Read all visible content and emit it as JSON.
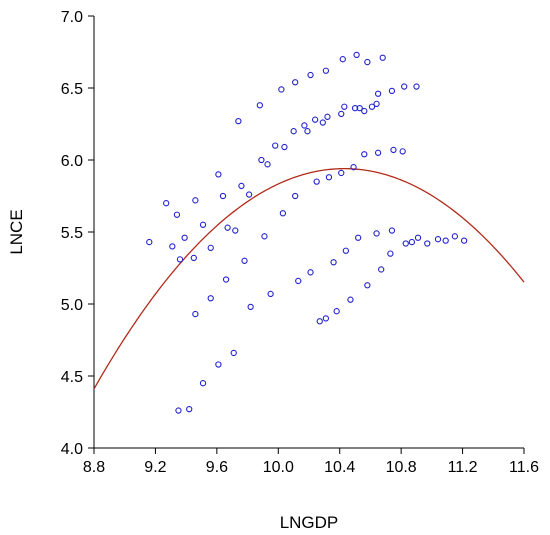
{
  "chart_data": {
    "type": "scatter",
    "xlabel": "LNGDP",
    "ylabel": "LNCE",
    "xlim": [
      8.8,
      11.6
    ],
    "ylim": [
      4.0,
      7.0
    ],
    "x_ticks": [
      "8.8",
      "9.2",
      "9.6",
      "10.0",
      "10.4",
      "10.8",
      "11.2",
      "11.6"
    ],
    "y_ticks": [
      "4.0",
      "4.5",
      "5.0",
      "5.5",
      "6.0",
      "6.5",
      "7.0"
    ],
    "grid": false,
    "marker_color": "#2222cc",
    "curve_color": "#b22a1a",
    "series": [
      {
        "kind": "points",
        "points": [
          [
            9.16,
            5.43
          ],
          [
            9.27,
            5.7
          ],
          [
            9.31,
            5.4
          ],
          [
            9.34,
            5.62
          ],
          [
            9.36,
            5.31
          ],
          [
            9.39,
            5.46
          ],
          [
            9.45,
            5.32
          ],
          [
            9.46,
            5.72
          ],
          [
            9.51,
            5.55
          ],
          [
            9.56,
            5.39
          ],
          [
            9.61,
            5.9
          ],
          [
            9.64,
            5.75
          ],
          [
            9.67,
            5.53
          ],
          [
            9.74,
            6.27
          ],
          [
            9.76,
            5.82
          ],
          [
            9.81,
            5.76
          ],
          [
            9.88,
            6.38
          ],
          [
            9.89,
            6.0
          ],
          [
            9.93,
            5.97
          ],
          [
            9.98,
            6.1
          ],
          [
            10.02,
            6.49
          ],
          [
            10.04,
            6.09
          ],
          [
            10.1,
            6.2
          ],
          [
            10.11,
            6.54
          ],
          [
            10.17,
            6.24
          ],
          [
            10.19,
            6.2
          ],
          [
            10.21,
            6.59
          ],
          [
            10.24,
            6.28
          ],
          [
            10.29,
            6.26
          ],
          [
            10.31,
            6.62
          ],
          [
            10.32,
            6.3
          ],
          [
            10.41,
            6.32
          ],
          [
            10.42,
            6.7
          ],
          [
            10.43,
            6.37
          ],
          [
            10.5,
            6.36
          ],
          [
            10.51,
            6.73
          ],
          [
            10.53,
            6.36
          ],
          [
            10.56,
            6.34
          ],
          [
            10.58,
            6.68
          ],
          [
            10.61,
            6.37
          ],
          [
            10.64,
            6.39
          ],
          [
            10.65,
            6.46
          ],
          [
            10.68,
            6.71
          ],
          [
            10.74,
            6.48
          ],
          [
            10.82,
            6.51
          ],
          [
            10.9,
            6.51
          ],
          [
            9.72,
            5.51
          ],
          [
            9.78,
            5.3
          ],
          [
            9.82,
            4.98
          ],
          [
            9.91,
            5.47
          ],
          [
            9.95,
            5.07
          ],
          [
            10.03,
            5.63
          ],
          [
            10.11,
            5.75
          ],
          [
            10.13,
            5.16
          ],
          [
            10.21,
            5.22
          ],
          [
            10.25,
            5.85
          ],
          [
            10.27,
            4.88
          ],
          [
            10.31,
            4.9
          ],
          [
            10.33,
            5.88
          ],
          [
            10.36,
            5.29
          ],
          [
            10.38,
            4.95
          ],
          [
            10.41,
            5.91
          ],
          [
            10.44,
            5.37
          ],
          [
            10.47,
            5.03
          ],
          [
            10.49,
            5.95
          ],
          [
            10.52,
            5.46
          ],
          [
            10.56,
            6.04
          ],
          [
            10.58,
            5.13
          ],
          [
            10.64,
            5.49
          ],
          [
            10.65,
            6.05
          ],
          [
            10.67,
            5.24
          ],
          [
            10.73,
            5.35
          ],
          [
            10.74,
            5.51
          ],
          [
            10.75,
            6.07
          ],
          [
            10.81,
            6.06
          ],
          [
            10.83,
            5.42
          ],
          [
            10.87,
            5.43
          ],
          [
            10.91,
            5.46
          ],
          [
            10.97,
            5.42
          ],
          [
            11.04,
            5.45
          ],
          [
            11.09,
            5.44
          ],
          [
            11.15,
            5.47
          ],
          [
            11.21,
            5.44
          ],
          [
            9.35,
            4.26
          ],
          [
            9.42,
            4.27
          ],
          [
            9.46,
            4.93
          ],
          [
            9.51,
            4.45
          ],
          [
            9.56,
            5.04
          ],
          [
            9.61,
            4.58
          ],
          [
            9.66,
            5.17
          ],
          [
            9.71,
            4.66
          ]
        ]
      },
      {
        "kind": "curve",
        "vertex_x": 10.43,
        "vertex_y": 5.94,
        "quadratic_coef": -0.5757
      }
    ]
  }
}
